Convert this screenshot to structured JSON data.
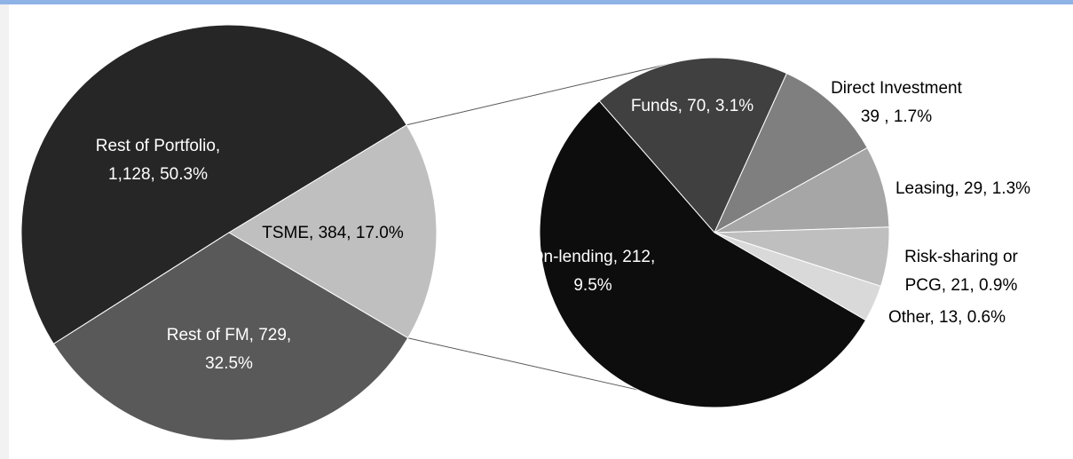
{
  "chart_data": [
    {
      "type": "pie",
      "labels": [
        [
          "Rest of Portfolio,",
          "1,128, 50.3%"
        ],
        [
          "TSME,  384, 17.0%"
        ],
        [
          "Rest of FM, 729,",
          "32.5%"
        ]
      ],
      "values": [
        1128,
        384,
        729
      ],
      "colors": [
        "#262626",
        "#bfbfbf",
        "#595959"
      ]
    },
    {
      "type": "pie",
      "labels": [
        [
          "Funds, 70, 3.1%"
        ],
        [
          "Direct Investment",
          "39 , 1.7%"
        ],
        [
          "Leasing, 29, 1.3%"
        ],
        [
          "Risk-sharing or",
          "PCG, 21, 0.9%"
        ],
        [
          "Other, 13, 0.6%"
        ],
        [
          "On-lending, 212,",
          "9.5%"
        ]
      ],
      "values": [
        70,
        39,
        29,
        21,
        13,
        212
      ],
      "colors": [
        "#404040",
        "#7f7f7f",
        "#a6a6a6",
        "#bfbfbf",
        "#d9d9d9",
        "#0d0d0d"
      ]
    }
  ]
}
